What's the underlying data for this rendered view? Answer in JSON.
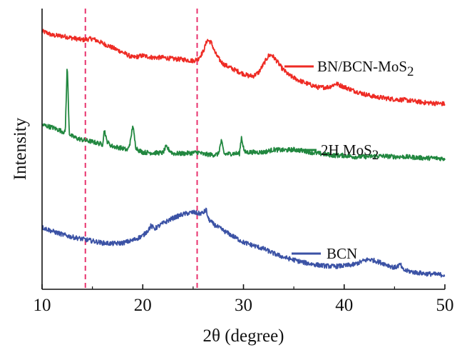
{
  "chart_data": {
    "type": "line",
    "title": "",
    "xlabel": "2θ (degree)",
    "ylabel": "Intensity",
    "xlim": [
      10,
      50
    ],
    "xticks": [
      "10",
      "20",
      "30",
      "40",
      "50"
    ],
    "y_ticks_shown": false,
    "grid": false,
    "legend": "inline labels to the right of each curve",
    "reference_lines_x": [
      14.3,
      25.4
    ],
    "reference_line_color": "#E8336E",
    "series": [
      {
        "name": "BN/BCN-MoS",
        "name_subscript": "2",
        "color": "#EE2B24",
        "x": [
          10,
          10.5,
          11,
          12,
          13,
          14,
          15,
          16,
          17,
          18,
          19,
          20,
          21,
          22,
          23,
          24,
          25,
          25.5,
          26,
          26.4,
          26.8,
          27.2,
          27.6,
          28,
          29,
          30,
          30.5,
          31,
          31.5,
          32,
          32.5,
          32.8,
          33.2,
          33.8,
          34.5,
          35.5,
          36.5,
          37.5,
          38.5,
          39.2,
          40,
          41,
          42,
          43,
          44,
          45,
          46,
          47,
          48,
          49,
          50
        ],
        "y": [
          3.95,
          3.93,
          3.89,
          3.88,
          3.85,
          3.82,
          3.84,
          3.77,
          3.7,
          3.63,
          3.55,
          3.58,
          3.55,
          3.55,
          3.53,
          3.52,
          3.5,
          3.53,
          3.64,
          3.82,
          3.78,
          3.62,
          3.52,
          3.45,
          3.37,
          3.3,
          3.27,
          3.27,
          3.32,
          3.45,
          3.58,
          3.59,
          3.52,
          3.39,
          3.28,
          3.2,
          3.14,
          3.09,
          3.1,
          3.15,
          3.1,
          3.04,
          2.99,
          2.95,
          2.93,
          2.91,
          2.9,
          2.88,
          2.86,
          2.85,
          2.84
        ]
      },
      {
        "name": "2H MoS",
        "name_subscript": "2",
        "color": "#21873F",
        "x": [
          10,
          11,
          12,
          12.3,
          12.5,
          12.7,
          12.9,
          13.5,
          14,
          15,
          16,
          16.2,
          16.4,
          16.7,
          17,
          18,
          18.5,
          18.8,
          19,
          19.3,
          19.6,
          20,
          21,
          22,
          22.3,
          23,
          24,
          25,
          25.5,
          26,
          27,
          27.5,
          27.8,
          28.1,
          29,
          29.6,
          29.8,
          30.1,
          31,
          32,
          33,
          34,
          35,
          36,
          37,
          38,
          39,
          40,
          41,
          42,
          43,
          44,
          45,
          46,
          47,
          48,
          49,
          50
        ],
        "y": [
          2.52,
          2.48,
          2.42,
          2.4,
          3.45,
          2.39,
          2.35,
          2.31,
          2.29,
          2.26,
          2.22,
          2.45,
          2.28,
          2.22,
          2.19,
          2.16,
          2.13,
          2.28,
          2.52,
          2.18,
          2.13,
          2.1,
          2.09,
          2.09,
          2.18,
          2.08,
          2.08,
          2.09,
          2.1,
          2.07,
          2.06,
          2.07,
          2.27,
          2.07,
          2.08,
          2.08,
          2.33,
          2.1,
          2.1,
          2.1,
          2.14,
          2.13,
          2.14,
          2.12,
          2.09,
          2.07,
          2.05,
          2.05,
          2.03,
          2.03,
          2.04,
          2.04,
          2.03,
          2.03,
          2.02,
          2.01,
          2.01,
          2.0
        ]
      },
      {
        "name": "BCN",
        "name_subscript": "",
        "color": "#3B52A5",
        "x": [
          10,
          11,
          12,
          13,
          14,
          15,
          16,
          17,
          18,
          19,
          20,
          20.5,
          20.8,
          21.2,
          22,
          23,
          24,
          25,
          25.6,
          26,
          26.3,
          26.5,
          27,
          28,
          29,
          30,
          31,
          32,
          33,
          34,
          35,
          36,
          37,
          38,
          39,
          40,
          41,
          42,
          42.5,
          43,
          44,
          45,
          45.6,
          45.8,
          46,
          47,
          48,
          49,
          50
        ],
        "y": [
          0.95,
          0.89,
          0.84,
          0.8,
          0.77,
          0.74,
          0.71,
          0.7,
          0.71,
          0.75,
          0.82,
          0.9,
          0.97,
          0.93,
          1.01,
          1.09,
          1.15,
          1.18,
          1.16,
          1.17,
          1.22,
          1.08,
          1.0,
          0.9,
          0.81,
          0.72,
          0.67,
          0.62,
          0.55,
          0.49,
          0.45,
          0.41,
          0.38,
          0.36,
          0.35,
          0.36,
          0.38,
          0.44,
          0.46,
          0.44,
          0.39,
          0.33,
          0.38,
          0.3,
          0.29,
          0.26,
          0.24,
          0.23,
          0.22
        ]
      }
    ]
  }
}
